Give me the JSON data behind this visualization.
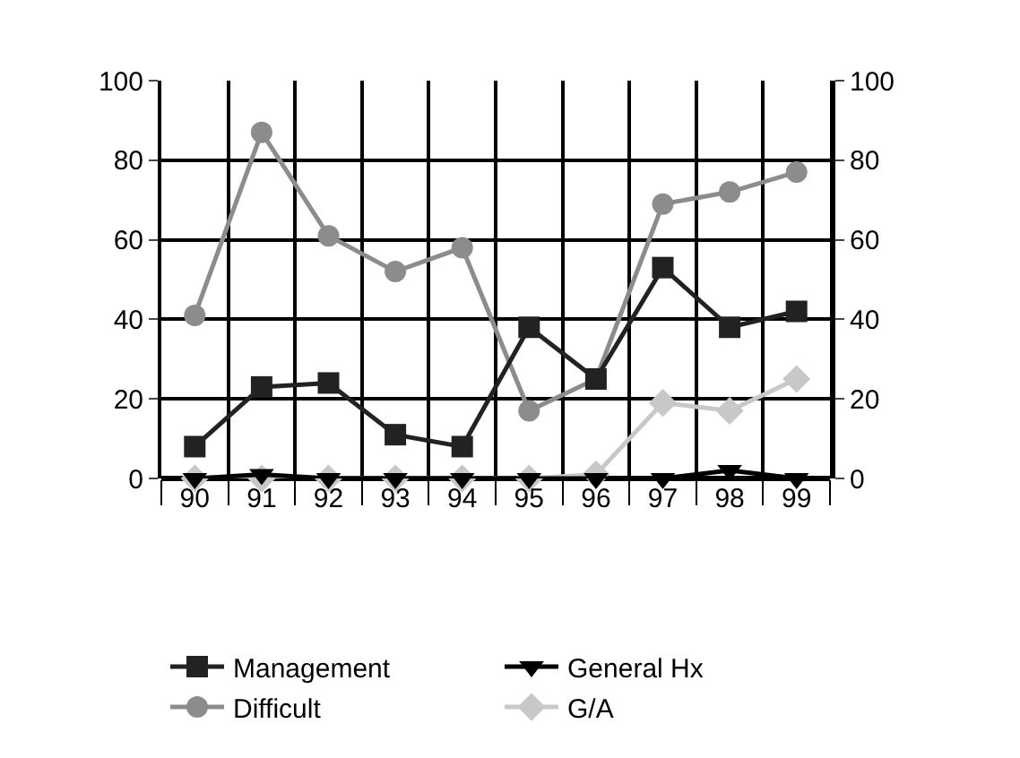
{
  "chart_data": {
    "type": "line",
    "categories": [
      "90",
      "91",
      "92",
      "93",
      "94",
      "95",
      "96",
      "97",
      "98",
      "99"
    ],
    "series": [
      {
        "name": "Management",
        "color": "#222222",
        "marker": "square",
        "values": [
          8,
          23,
          24,
          11,
          8,
          38,
          25,
          53,
          38,
          42
        ]
      },
      {
        "name": "General Hx",
        "color": "#000000",
        "marker": "triangle",
        "values": [
          0,
          1,
          0,
          0,
          0,
          0,
          0,
          0,
          2,
          0
        ]
      },
      {
        "name": "Difficult",
        "color": "#8c8c8c",
        "marker": "circle",
        "values": [
          41,
          87,
          61,
          52,
          58,
          17,
          25,
          69,
          72,
          77
        ]
      },
      {
        "name": "G/A",
        "color": "#c8c8c8",
        "marker": "diamond",
        "values": [
          0,
          0,
          0,
          0,
          0,
          0,
          1,
          19,
          17,
          25
        ]
      }
    ],
    "ylim": [
      0,
      100
    ],
    "yticks": [
      0,
      20,
      40,
      60,
      80,
      100
    ],
    "y2lim": [
      0,
      100
    ],
    "y2ticks": [
      0,
      20,
      40,
      60,
      80,
      100
    ],
    "grid": true,
    "legend": "bottom",
    "line_style": "solid"
  }
}
